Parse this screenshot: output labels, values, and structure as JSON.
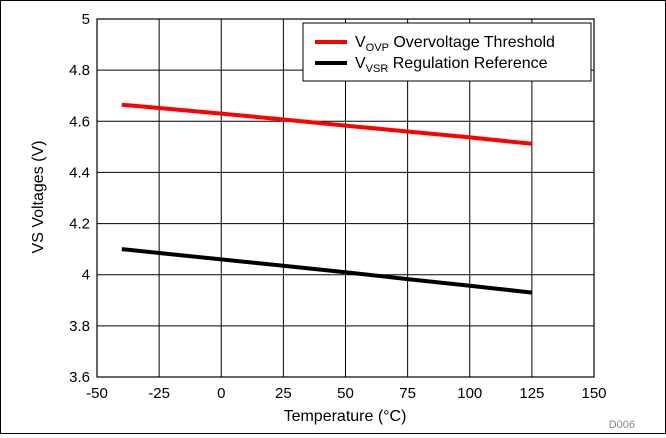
{
  "chart_data": {
    "type": "line",
    "title": "",
    "xlabel": "Temperature (°C)",
    "ylabel": "VS Voltages (V)",
    "xlim": [
      -50,
      150
    ],
    "ylim": [
      3.6,
      5
    ],
    "x_ticks": [
      "-50",
      "-25",
      "0",
      "25",
      "50",
      "75",
      "100",
      "125",
      "150"
    ],
    "y_ticks": [
      "3.6",
      "3.8",
      "4",
      "4.2",
      "4.4",
      "4.6",
      "4.8",
      "5"
    ],
    "grid": true,
    "legend_position": "top-right",
    "series": [
      {
        "name": "VOVP Overvoltage Threshold",
        "legend_main": "V",
        "legend_sub": "OVP",
        "legend_rest": " Overvoltage Threshold",
        "color": "#ff0000",
        "x": [
          -40,
          -25,
          0,
          25,
          50,
          75,
          100,
          125
        ],
        "y": [
          4.665,
          4.652,
          4.63,
          4.607,
          4.583,
          4.56,
          4.537,
          4.512
        ]
      },
      {
        "name": "VVSR Regulation Reference",
        "legend_main": "V",
        "legend_sub": "VSR",
        "legend_rest": " Regulation Reference",
        "color": "#000000",
        "x": [
          -40,
          -25,
          0,
          25,
          50,
          75,
          100,
          125
        ],
        "y": [
          4.1,
          4.085,
          4.06,
          4.035,
          4.01,
          3.983,
          3.957,
          3.93
        ]
      }
    ],
    "annotation": "D006"
  }
}
